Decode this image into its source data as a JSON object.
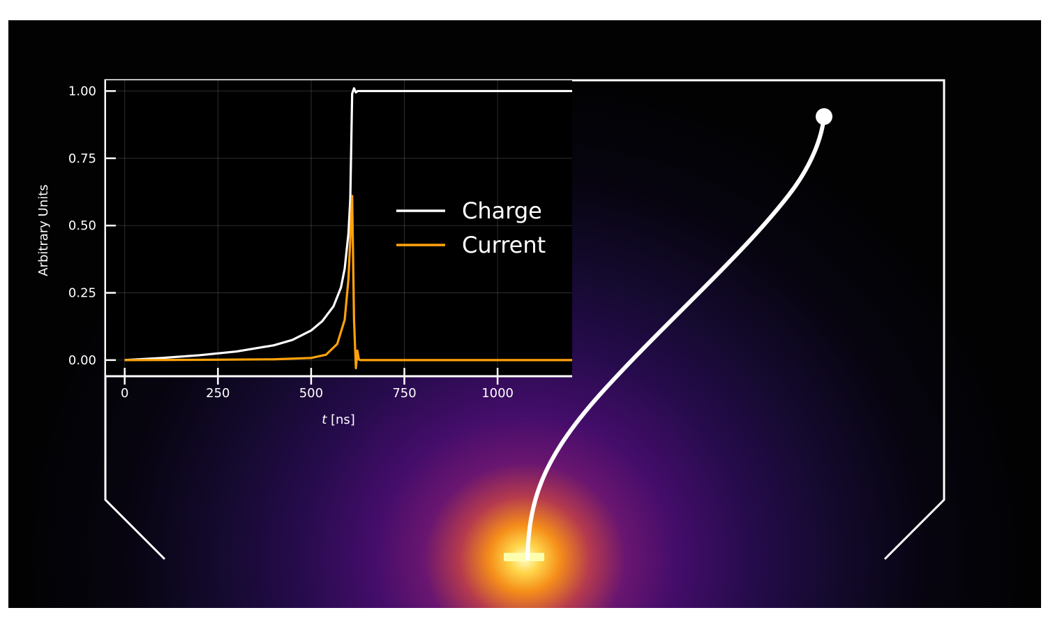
{
  "chart_data": {
    "type": "line",
    "title": "",
    "xlabel_italic": "t",
    "xlabel_unit": " [ns]",
    "ylabel": "Arbitrary Units",
    "xlim": [
      -50,
      1200
    ],
    "ylim": [
      -0.06,
      1.04
    ],
    "grid": true,
    "legend_position": "center-right",
    "x_ticks": [
      0,
      250,
      500,
      750,
      1000
    ],
    "x_tick_labels": [
      "0",
      "250",
      "500",
      "750",
      "1000"
    ],
    "y_ticks": [
      0,
      0.25,
      0.5,
      0.75,
      1.0
    ],
    "y_tick_labels": [
      "0.00",
      "0.25",
      "0.50",
      "0.75",
      "1.00"
    ],
    "series": [
      {
        "name": "Charge",
        "color": "#ffffff",
        "x": [
          0,
          100,
          200,
          300,
          400,
          450,
          500,
          530,
          560,
          580,
          590,
          600,
          605,
          610,
          615,
          620,
          625,
          700,
          900,
          1200
        ],
        "values": [
          0.0,
          0.008,
          0.018,
          0.032,
          0.055,
          0.075,
          0.11,
          0.145,
          0.2,
          0.27,
          0.34,
          0.47,
          0.6,
          0.99,
          1.01,
          0.995,
          1.0,
          1.0,
          1.0,
          1.0
        ]
      },
      {
        "name": "Current",
        "color": "#ffa20a",
        "x": [
          0,
          200,
          400,
          500,
          540,
          570,
          590,
          600,
          606,
          610,
          615,
          620,
          624,
          628,
          632,
          640,
          700,
          1200
        ],
        "values": [
          0.0,
          0.001,
          0.003,
          0.008,
          0.02,
          0.06,
          0.15,
          0.3,
          0.48,
          0.61,
          0.15,
          -0.03,
          0.035,
          0.002,
          0.0,
          0.0,
          0.0,
          0.0
        ]
      }
    ]
  },
  "colors": {
    "background": "#000000",
    "glow_core": "#ffffcc",
    "glow_mid": "#f58e1a",
    "glow_outer": "#4b0c6b",
    "axes": "#ffffff",
    "charge": "#ffffff",
    "current": "#ffa20a"
  },
  "illustration": {
    "electron_track": "white curved drift path from detector bottom electrode up to a dot near the top right",
    "detector_outline": "white chamber outline with angled lower corners",
    "colormap": "inferno"
  }
}
